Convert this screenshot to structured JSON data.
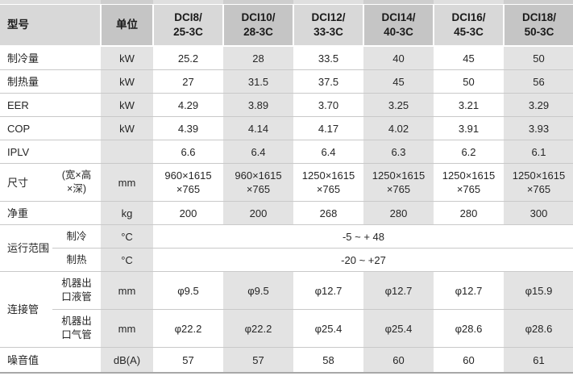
{
  "colors": {
    "header_light": "#d8d8d8",
    "header_dark": "#c5c5c5",
    "column_grey": "#e3e3e3",
    "row_border": "#c9c9c9",
    "bottom_border": "#a8a8a8"
  },
  "table": {
    "header": {
      "model_col": "型号",
      "unit_col": "单位",
      "models": [
        "DCI8/\n25-3C",
        "DCI10/\n28-3C",
        "DCI12/\n33-3C",
        "DCI14/\n40-3C",
        "DCI16/\n45-3C",
        "DCI18/\n50-3C"
      ]
    },
    "rows": {
      "cooling_capacity": {
        "label": "制冷量",
        "unit": "kW",
        "values": [
          "25.2",
          "28",
          "33.5",
          "40",
          "45",
          "50"
        ]
      },
      "heating_capacity": {
        "label": "制热量",
        "unit": "kW",
        "values": [
          "27",
          "31.5",
          "37.5",
          "45",
          "50",
          "56"
        ]
      },
      "eer": {
        "label": "EER",
        "unit": "kW",
        "values": [
          "4.29",
          "3.89",
          "3.70",
          "3.25",
          "3.21",
          "3.29"
        ]
      },
      "cop": {
        "label": "COP",
        "unit": "kW",
        "values": [
          "4.39",
          "4.14",
          "4.17",
          "4.02",
          "3.91",
          "3.93"
        ]
      },
      "iplv": {
        "label": "IPLV",
        "unit": "",
        "values": [
          "6.6",
          "6.4",
          "6.4",
          "6.3",
          "6.2",
          "6.1"
        ]
      },
      "dimensions": {
        "label": "尺寸",
        "sublabel": "(宽×高\n×深)",
        "unit": "mm",
        "values": [
          "960×1615\n×765",
          "960×1615\n×765",
          "1250×1615\n×765",
          "1250×1615\n×765",
          "1250×1615\n×765",
          "1250×1615\n×765"
        ]
      },
      "net_weight": {
        "label": "净重",
        "unit": "kg",
        "values": [
          "200",
          "200",
          "268",
          "280",
          "280",
          "300"
        ]
      },
      "operating_range": {
        "label": "运行范围",
        "cooling": {
          "sublabel": "制冷",
          "unit": "°C",
          "span_value": "-5 ~ + 48"
        },
        "heating": {
          "sublabel": "制热",
          "unit": "°C",
          "span_value": "-20 ~ +27"
        }
      },
      "connecting_pipe": {
        "label": "连接管",
        "liquid": {
          "sublabel": "机器出\n口液管",
          "unit": "mm",
          "values": [
            "φ9.5",
            "φ9.5",
            "φ12.7",
            "φ12.7",
            "φ12.7",
            "φ15.9"
          ]
        },
        "gas": {
          "sublabel": "机器出\n口气管",
          "unit": "mm",
          "values": [
            "φ22.2",
            "φ22.2",
            "φ25.4",
            "φ25.4",
            "φ28.6",
            "φ28.6"
          ]
        }
      },
      "noise": {
        "label": "噪音值",
        "unit": "dB(A)",
        "values": [
          "57",
          "57",
          "58",
          "60",
          "60",
          "61"
        ]
      }
    }
  }
}
